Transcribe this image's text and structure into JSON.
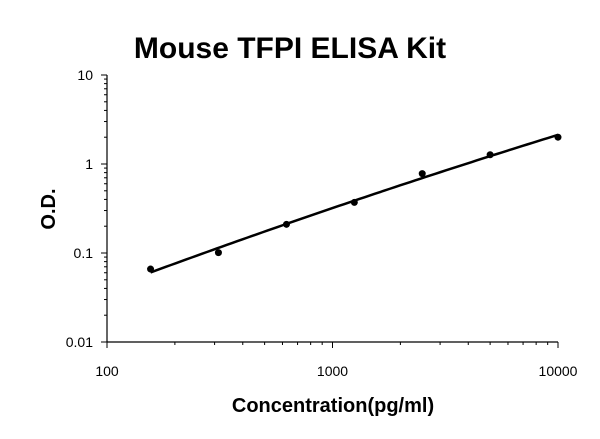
{
  "chart_data": {
    "type": "scatter",
    "title": "Mouse TFPI ELISA Kit",
    "xlabel": "Concentration(pg/ml)",
    "ylabel": "O.D.",
    "x_scale": "log",
    "y_scale": "log",
    "xlim": [
      100,
      10000
    ],
    "ylim": [
      0.01,
      10
    ],
    "x_ticks": [
      "100",
      "1000",
      "10000"
    ],
    "y_ticks": [
      "10",
      "1",
      "0.1",
      "0.01"
    ],
    "grid": false,
    "legend": "none",
    "series": [
      {
        "points": [
          {
            "x": 156,
            "y": 0.066
          },
          {
            "x": 312,
            "y": 0.101
          },
          {
            "x": 625,
            "y": 0.21
          },
          {
            "x": 1250,
            "y": 0.37
          },
          {
            "x": 2500,
            "y": 0.78
          },
          {
            "x": 5000,
            "y": 1.27
          },
          {
            "x": 10000,
            "y": 2.0
          }
        ],
        "trendline": "fitted curve"
      }
    ],
    "colors": {
      "line": "#000000",
      "points": "#000000"
    }
  }
}
